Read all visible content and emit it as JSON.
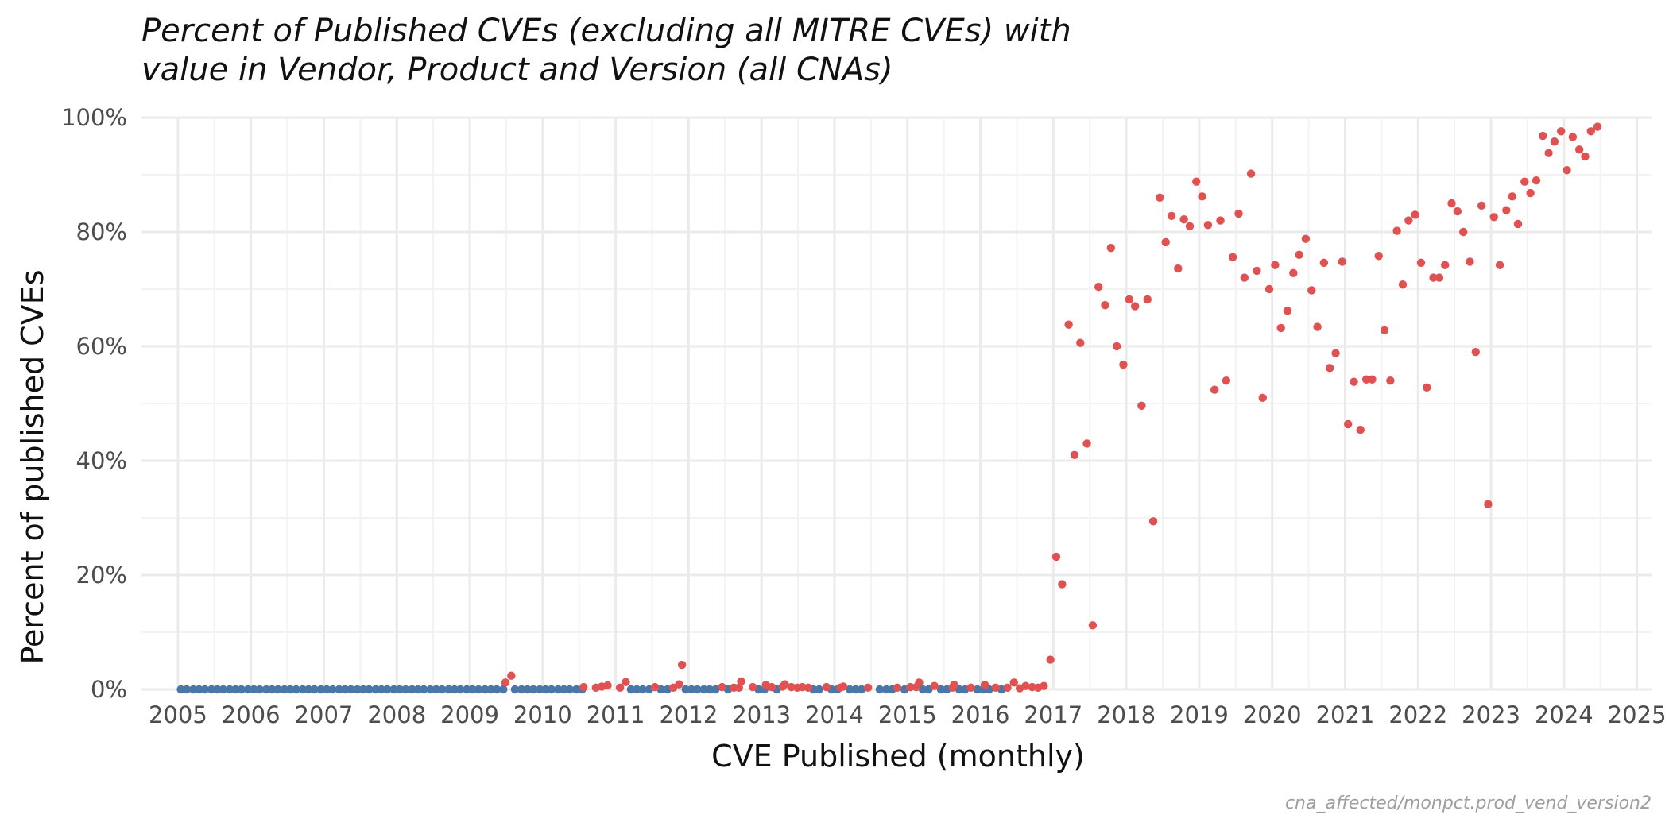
{
  "chart_data": {
    "type": "scatter",
    "title_line1": "Percent of Published CVEs (excluding all MITRE CVEs) with",
    "title_line2": "value in Vendor, Product and Version (all CNAs)",
    "xlabel": "CVE Published (monthly)",
    "ylabel": "Percent of published CVEs",
    "caption": "cna_affected/monpct.prod_vend_version2",
    "x_unit": "year (decimal)",
    "y_unit": "percent",
    "xlim": [
      2004.5,
      2025.2
    ],
    "ylim": [
      0,
      100
    ],
    "x_ticks": [
      2005,
      2006,
      2007,
      2008,
      2009,
      2010,
      2011,
      2012,
      2013,
      2014,
      2015,
      2016,
      2017,
      2018,
      2019,
      2020,
      2021,
      2022,
      2023,
      2024,
      2025
    ],
    "x_tick_labels": [
      "2005",
      "2006",
      "2007",
      "2008",
      "2009",
      "2010",
      "2011",
      "2012",
      "2013",
      "2014",
      "2015",
      "2016",
      "2017",
      "2018",
      "2019",
      "2020",
      "2021",
      "2022",
      "2023",
      "2024",
      "2025"
    ],
    "y_ticks": [
      0,
      20,
      40,
      60,
      80,
      100
    ],
    "y_tick_labels": [
      "0%",
      "20%",
      "40%",
      "60%",
      "80%",
      "100%"
    ],
    "grid": true,
    "legend": "none",
    "colors": {
      "zero": "#4a76a8",
      "nonzero": "#e05252"
    },
    "series": [
      {
        "color_key": "zero",
        "points": [
          [
            2005.04,
            0
          ],
          [
            2005.12,
            0
          ],
          [
            2005.21,
            0
          ],
          [
            2005.29,
            0
          ],
          [
            2005.37,
            0
          ],
          [
            2005.46,
            0
          ],
          [
            2005.54,
            0
          ],
          [
            2005.62,
            0
          ],
          [
            2005.71,
            0
          ],
          [
            2005.79,
            0
          ],
          [
            2005.87,
            0
          ],
          [
            2005.96,
            0
          ],
          [
            2006.04,
            0
          ],
          [
            2006.12,
            0
          ],
          [
            2006.21,
            0
          ],
          [
            2006.29,
            0
          ],
          [
            2006.37,
            0
          ],
          [
            2006.46,
            0
          ],
          [
            2006.54,
            0
          ],
          [
            2006.62,
            0
          ],
          [
            2006.71,
            0
          ],
          [
            2006.79,
            0
          ],
          [
            2006.87,
            0
          ],
          [
            2006.96,
            0
          ],
          [
            2007.04,
            0
          ],
          [
            2007.12,
            0
          ],
          [
            2007.21,
            0
          ],
          [
            2007.29,
            0
          ],
          [
            2007.37,
            0
          ],
          [
            2007.46,
            0
          ],
          [
            2007.54,
            0
          ],
          [
            2007.62,
            0
          ],
          [
            2007.71,
            0
          ],
          [
            2007.79,
            0
          ],
          [
            2007.87,
            0
          ],
          [
            2007.96,
            0
          ],
          [
            2008.04,
            0
          ],
          [
            2008.12,
            0
          ],
          [
            2008.21,
            0
          ],
          [
            2008.29,
            0
          ],
          [
            2008.37,
            0
          ],
          [
            2008.46,
            0
          ],
          [
            2008.54,
            0
          ],
          [
            2008.62,
            0
          ],
          [
            2008.71,
            0
          ],
          [
            2008.79,
            0
          ],
          [
            2008.87,
            0
          ],
          [
            2008.96,
            0
          ],
          [
            2009.04,
            0
          ],
          [
            2009.12,
            0
          ],
          [
            2009.21,
            0
          ],
          [
            2009.29,
            0
          ],
          [
            2009.37,
            0
          ],
          [
            2009.46,
            0
          ],
          [
            2009.62,
            0
          ],
          [
            2009.71,
            0
          ],
          [
            2009.79,
            0
          ],
          [
            2009.87,
            0
          ],
          [
            2009.96,
            0
          ],
          [
            2010.04,
            0
          ],
          [
            2010.12,
            0
          ],
          [
            2010.21,
            0
          ],
          [
            2010.29,
            0
          ],
          [
            2010.37,
            0
          ],
          [
            2010.46,
            0
          ],
          [
            2010.54,
            0
          ],
          [
            2011.21,
            0
          ],
          [
            2011.29,
            0
          ],
          [
            2011.37,
            0
          ],
          [
            2011.46,
            0
          ],
          [
            2011.62,
            0
          ],
          [
            2011.71,
            0
          ],
          [
            2011.96,
            0
          ],
          [
            2012.04,
            0
          ],
          [
            2012.12,
            0
          ],
          [
            2012.21,
            0
          ],
          [
            2012.29,
            0
          ],
          [
            2012.37,
            0
          ],
          [
            2012.54,
            0
          ],
          [
            2012.96,
            0
          ],
          [
            2013.04,
            0
          ],
          [
            2013.21,
            0
          ],
          [
            2013.71,
            0
          ],
          [
            2013.79,
            0
          ],
          [
            2013.96,
            0
          ],
          [
            2014.04,
            0
          ],
          [
            2014.21,
            0
          ],
          [
            2014.29,
            0
          ],
          [
            2014.37,
            0
          ],
          [
            2014.62,
            0
          ],
          [
            2014.71,
            0
          ],
          [
            2014.79,
            0
          ],
          [
            2014.96,
            0
          ],
          [
            2015.21,
            0
          ],
          [
            2015.29,
            0
          ],
          [
            2015.46,
            0
          ],
          [
            2015.54,
            0
          ],
          [
            2015.71,
            0
          ],
          [
            2015.79,
            0
          ],
          [
            2015.96,
            0
          ],
          [
            2016.04,
            0
          ],
          [
            2016.12,
            0
          ],
          [
            2016.29,
            0
          ]
        ]
      },
      {
        "color_key": "nonzero",
        "points": [
          [
            2009.49,
            1.2
          ],
          [
            2009.57,
            2.4
          ],
          [
            2010.56,
            0.4
          ],
          [
            2010.73,
            0.3
          ],
          [
            2010.81,
            0.5
          ],
          [
            2010.89,
            0.7
          ],
          [
            2011.06,
            0.3
          ],
          [
            2011.14,
            1.3
          ],
          [
            2011.54,
            0.4
          ],
          [
            2011.79,
            0.3
          ],
          [
            2011.87,
            0.9
          ],
          [
            2011.91,
            4.3
          ],
          [
            2012.46,
            0.4
          ],
          [
            2012.62,
            0.3
          ],
          [
            2012.69,
            0.3
          ],
          [
            2012.72,
            1.4
          ],
          [
            2012.88,
            0.4
          ],
          [
            2013.06,
            0.8
          ],
          [
            2013.14,
            0.4
          ],
          [
            2013.29,
            0.5
          ],
          [
            2013.32,
            0.9
          ],
          [
            2013.41,
            0.4
          ],
          [
            2013.49,
            0.3
          ],
          [
            2013.56,
            0.4
          ],
          [
            2013.64,
            0.3
          ],
          [
            2013.89,
            0.4
          ],
          [
            2014.08,
            0.3
          ],
          [
            2014.12,
            0.5
          ],
          [
            2014.46,
            0.3
          ],
          [
            2014.86,
            0.3
          ],
          [
            2015.04,
            0.4
          ],
          [
            2015.12,
            0.4
          ],
          [
            2015.16,
            1.2
          ],
          [
            2015.37,
            0.6
          ],
          [
            2015.62,
            0.3
          ],
          [
            2015.64,
            0.8
          ],
          [
            2015.87,
            0.3
          ],
          [
            2016.06,
            0.8
          ],
          [
            2016.21,
            0.3
          ],
          [
            2016.37,
            0.3
          ],
          [
            2016.46,
            1.2
          ],
          [
            2016.54,
            0.2
          ],
          [
            2016.62,
            0.6
          ],
          [
            2016.71,
            0.4
          ],
          [
            2016.79,
            0.3
          ],
          [
            2016.87,
            0.6
          ],
          [
            2016.96,
            5.2
          ],
          [
            2017.04,
            23.2
          ],
          [
            2017.12,
            18.4
          ],
          [
            2017.21,
            63.8
          ],
          [
            2017.29,
            41
          ],
          [
            2017.37,
            60.6
          ],
          [
            2017.46,
            43
          ],
          [
            2017.54,
            11.2
          ],
          [
            2017.62,
            70.4
          ],
          [
            2017.71,
            67.2
          ],
          [
            2017.79,
            77.2
          ],
          [
            2017.87,
            60
          ],
          [
            2017.96,
            56.8
          ],
          [
            2018.04,
            68.2
          ],
          [
            2018.12,
            67
          ],
          [
            2018.21,
            49.6
          ],
          [
            2018.29,
            68.2
          ],
          [
            2018.37,
            29.4
          ],
          [
            2018.46,
            86
          ],
          [
            2018.54,
            78.2
          ],
          [
            2018.62,
            82.8
          ],
          [
            2018.71,
            73.6
          ],
          [
            2018.79,
            82.2
          ],
          [
            2018.87,
            81
          ],
          [
            2018.96,
            88.8
          ],
          [
            2019.04,
            86.2
          ],
          [
            2019.12,
            81.2
          ],
          [
            2019.21,
            52.4
          ],
          [
            2019.29,
            82
          ],
          [
            2019.37,
            54
          ],
          [
            2019.46,
            75.6
          ],
          [
            2019.54,
            83.2
          ],
          [
            2019.62,
            72
          ],
          [
            2019.71,
            90.2
          ],
          [
            2019.79,
            73.2
          ],
          [
            2019.87,
            51
          ],
          [
            2019.96,
            70
          ],
          [
            2020.04,
            74.2
          ],
          [
            2020.12,
            63.2
          ],
          [
            2020.21,
            66.2
          ],
          [
            2020.29,
            72.8
          ],
          [
            2020.37,
            76
          ],
          [
            2020.46,
            78.8
          ],
          [
            2020.54,
            69.8
          ],
          [
            2020.62,
            63.4
          ],
          [
            2020.71,
            74.6
          ],
          [
            2020.79,
            56.2
          ],
          [
            2020.87,
            58.8
          ],
          [
            2020.96,
            74.8
          ],
          [
            2021.04,
            46.4
          ],
          [
            2021.12,
            53.8
          ],
          [
            2021.21,
            45.4
          ],
          [
            2021.29,
            54.2
          ],
          [
            2021.37,
            54.2
          ],
          [
            2021.46,
            75.8
          ],
          [
            2021.54,
            62.8
          ],
          [
            2021.62,
            54
          ],
          [
            2021.71,
            80.2
          ],
          [
            2021.79,
            70.8
          ],
          [
            2021.87,
            82
          ],
          [
            2021.96,
            83
          ],
          [
            2022.04,
            74.6
          ],
          [
            2022.12,
            52.8
          ],
          [
            2022.21,
            72
          ],
          [
            2022.29,
            72
          ],
          [
            2022.37,
            74.2
          ],
          [
            2022.46,
            85
          ],
          [
            2022.54,
            83.6
          ],
          [
            2022.62,
            80
          ],
          [
            2022.71,
            74.8
          ],
          [
            2022.79,
            59
          ],
          [
            2022.87,
            84.6
          ],
          [
            2022.96,
            32.4
          ],
          [
            2023.04,
            82.6
          ],
          [
            2023.12,
            74.2
          ],
          [
            2023.21,
            83.8
          ],
          [
            2023.29,
            86.2
          ],
          [
            2023.37,
            81.4
          ],
          [
            2023.46,
            88.8
          ],
          [
            2023.54,
            86.8
          ],
          [
            2023.62,
            89
          ],
          [
            2023.71,
            96.8
          ],
          [
            2023.79,
            93.8
          ],
          [
            2023.87,
            95.8
          ],
          [
            2023.96,
            97.6
          ],
          [
            2024.04,
            90.8
          ],
          [
            2024.12,
            96.6
          ],
          [
            2024.21,
            94.4
          ],
          [
            2024.29,
            93.2
          ],
          [
            2024.37,
            97.6
          ],
          [
            2024.46,
            98.4
          ]
        ]
      }
    ]
  }
}
